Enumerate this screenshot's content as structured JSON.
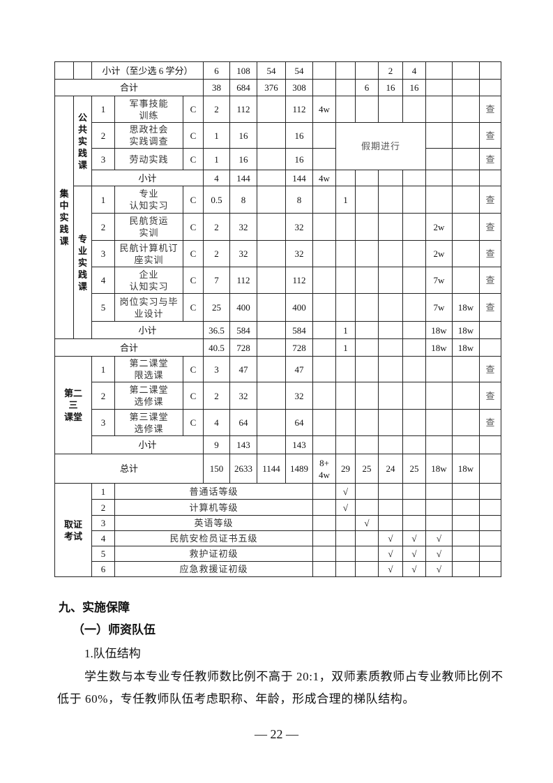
{
  "table": {
    "rows": [
      [
        "",
        "",
        "小计（至少选 6 学分）",
        "6",
        "108",
        "54",
        "54",
        "",
        "",
        "",
        "2",
        "4",
        "",
        "",
        ""
      ],
      [
        "合计",
        "38",
        "684",
        "376",
        "308",
        "",
        "",
        "6",
        "16",
        "16",
        "",
        "",
        ""
      ],
      [
        "集\n中\n实\n践\n课",
        "公\n共\n实\n践\n课",
        "1",
        "军事技能\n训练",
        "C",
        "2",
        "112",
        "",
        "112",
        "4w",
        "",
        "",
        "",
        "",
        "",
        "",
        "查"
      ],
      [
        "2",
        "思政社会\n实践调查",
        "C",
        "1",
        "16",
        "",
        "16",
        "",
        "假期进行",
        "",
        "",
        "查"
      ],
      [
        "3",
        "劳动实践",
        "C",
        "1",
        "16",
        "",
        "16",
        "",
        "",
        "",
        "查"
      ],
      [
        "小计",
        "4",
        "144",
        "",
        "144",
        "4w",
        "",
        "",
        "",
        "",
        "",
        "",
        ""
      ],
      [
        "专\n业\n实\n践\n课",
        "1",
        "专业\n认知实习",
        "C",
        "0.5",
        "8",
        "",
        "8",
        "",
        "1",
        "",
        "",
        "",
        "",
        "",
        "查"
      ],
      [
        "2",
        "民航货运\n实训",
        "C",
        "2",
        "32",
        "",
        "32",
        "",
        "",
        "",
        "",
        "",
        "2w",
        "",
        "查"
      ],
      [
        "3",
        "民航计算机订\n座实训",
        "C",
        "2",
        "32",
        "",
        "32",
        "",
        "",
        "",
        "",
        "",
        "2w",
        "",
        "查"
      ],
      [
        "4",
        "企业\n认知实习",
        "C",
        "7",
        "112",
        "",
        "112",
        "",
        "",
        "",
        "",
        "",
        "7w",
        "",
        "查"
      ],
      [
        "5",
        "岗位实习与毕\n业设计",
        "C",
        "25",
        "400",
        "",
        "400",
        "",
        "",
        "",
        "",
        "",
        "7w",
        "18w",
        "查"
      ],
      [
        "小计",
        "36.5",
        "584",
        "",
        "584",
        "",
        "1",
        "",
        "",
        "",
        "18w",
        "18w",
        ""
      ],
      [
        "合计",
        "40.5",
        "728",
        "",
        "728",
        "",
        "1",
        "",
        "",
        "",
        "18w",
        "18w",
        ""
      ],
      [
        "第二\n三\n课堂",
        "1",
        "第二课堂\n限选课",
        "C",
        "3",
        "47",
        "",
        "47",
        "",
        "",
        "",
        "",
        "",
        "",
        "",
        "查"
      ],
      [
        "2",
        "第二课堂\n选修课",
        "C",
        "2",
        "32",
        "",
        "32",
        "",
        "",
        "",
        "",
        "",
        "",
        "",
        "查"
      ],
      [
        "3",
        "第三课堂\n选修课",
        "C",
        "4",
        "64",
        "",
        "64",
        "",
        "",
        "",
        "",
        "",
        "",
        "",
        "查"
      ],
      [
        "小计",
        "9",
        "143",
        "",
        "143",
        "",
        "",
        "",
        "",
        "",
        "",
        "",
        ""
      ],
      [
        "总计",
        "150",
        "2633",
        "1144",
        "1489",
        "8+\n4w",
        "29",
        "25",
        "24",
        "25",
        "18w",
        "18w",
        ""
      ],
      [
        "取证\n考试",
        "1",
        "普通话等级",
        "",
        "√",
        "",
        "",
        "",
        "",
        "",
        ""
      ],
      [
        "2",
        "计算机等级",
        "",
        "√",
        "",
        "",
        "",
        "",
        "",
        ""
      ],
      [
        "3",
        "英语等级",
        "",
        "",
        "√",
        "",
        "",
        "",
        "",
        ""
      ],
      [
        "4",
        "民航安检员证书五级",
        "",
        "",
        "",
        "√",
        "√",
        "√",
        "",
        ""
      ],
      [
        "5",
        "救护证初级",
        "",
        "",
        "",
        "√",
        "√",
        "√",
        "",
        ""
      ],
      [
        "6",
        "应急救援证初级",
        "",
        "",
        "",
        "√",
        "√",
        "√",
        "",
        ""
      ]
    ]
  },
  "section": {
    "heading": "九、实施保障",
    "subheading": "（一）师资队伍",
    "item": "1.队伍结构",
    "paragraph": "学生数与本专业专任教师数比例不高于 20:1，双师素质教师占专业教师比例不低于 60%，专任教师队伍考虑职称、年龄，形成合理的梯队结构。"
  },
  "page_number": "— 22 —"
}
